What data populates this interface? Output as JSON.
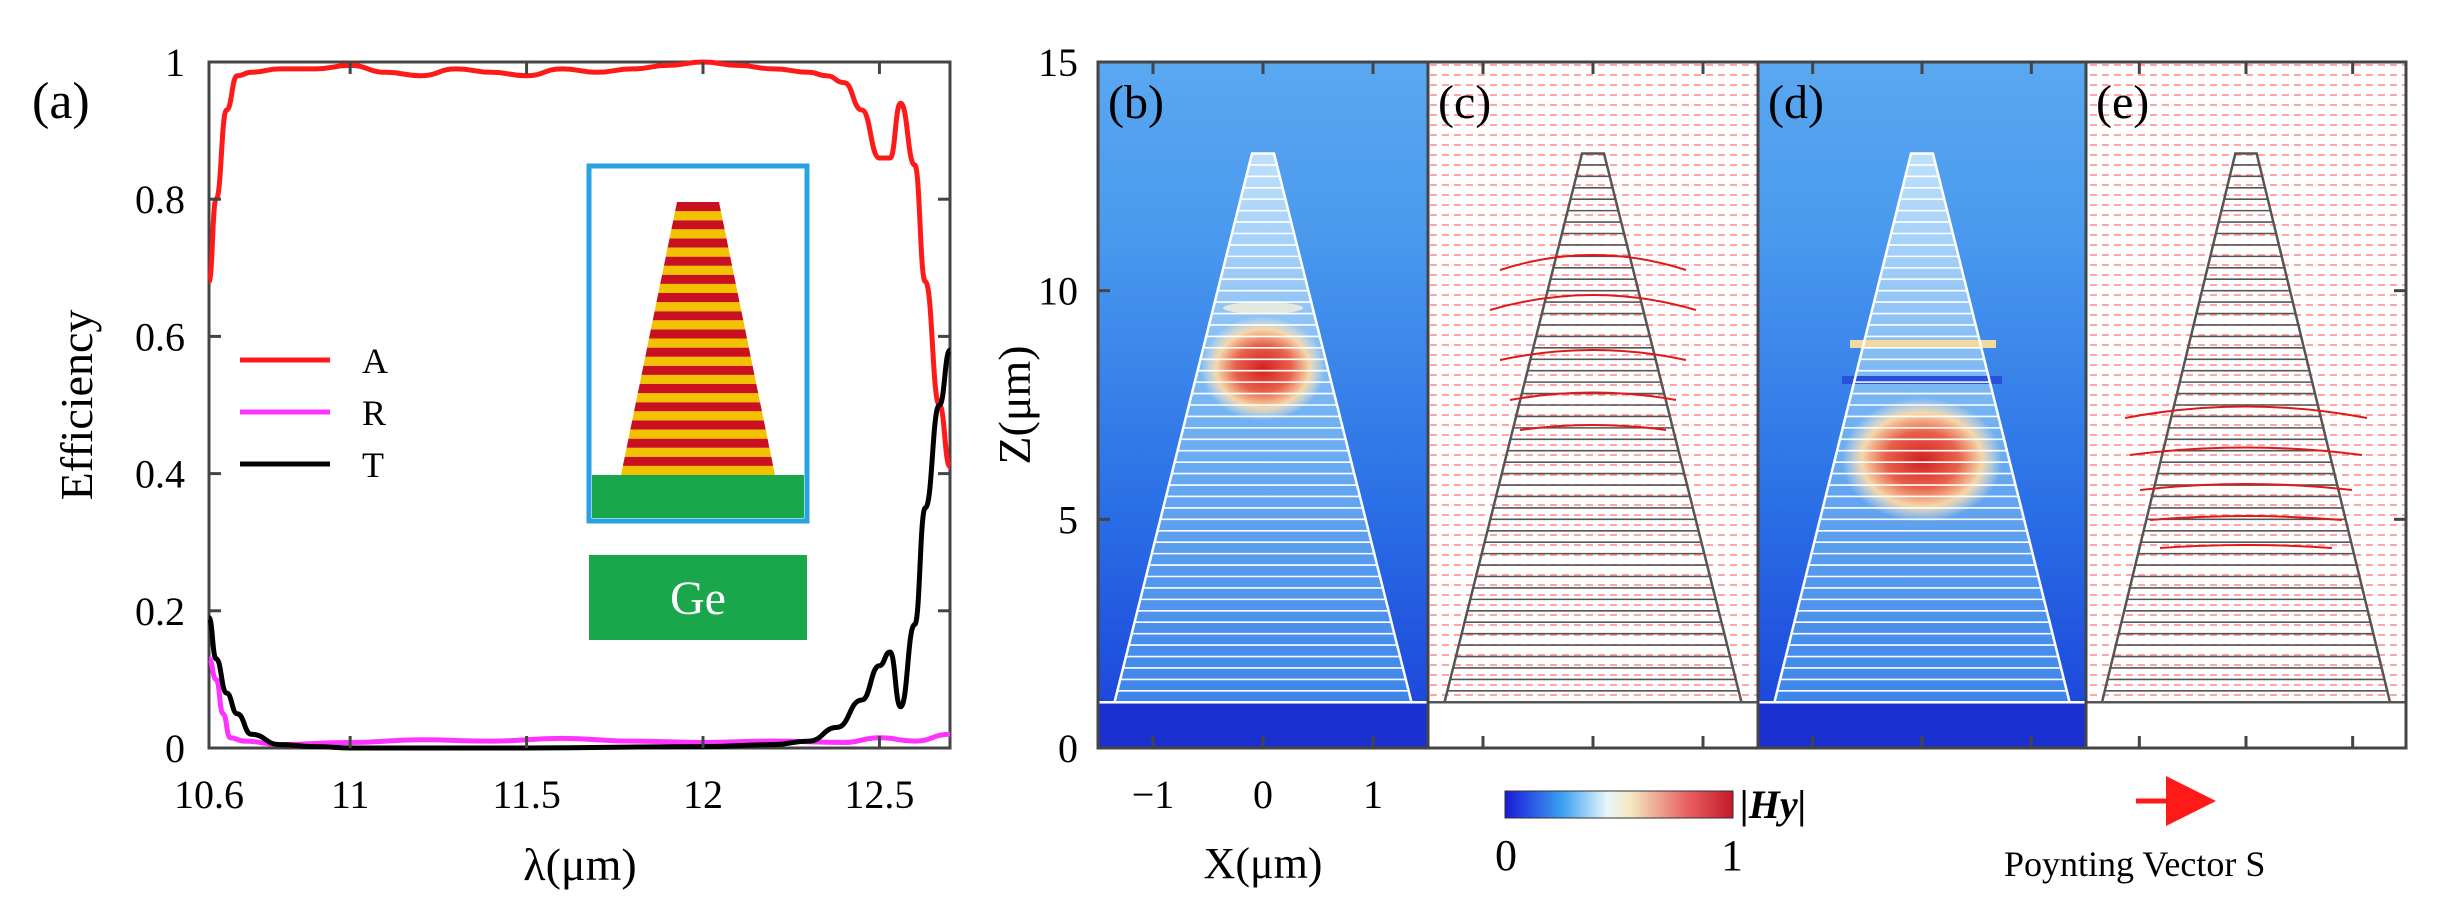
{
  "chart_data": [
    {
      "panel": "(a)",
      "type": "line",
      "xlabel": "λ(μm)",
      "ylabel": "Efficiency",
      "xlim": [
        10.6,
        12.7
      ],
      "ylim": [
        0,
        1
      ],
      "xticks": [
        "10.6",
        "11",
        "11.5",
        "12",
        "12.5"
      ],
      "xtick_values": [
        10.6,
        11,
        11.5,
        12,
        12.5
      ],
      "yticks": [
        "0",
        "0.2",
        "0.4",
        "0.6",
        "0.8",
        "1"
      ],
      "ytick_values": [
        0,
        0.2,
        0.4,
        0.6,
        0.8,
        1
      ],
      "legend": [
        "A",
        "R",
        "T"
      ],
      "colors": {
        "A": "#ff1a1a",
        "R": "#ff33ff",
        "T": "#000000"
      },
      "series": [
        {
          "name": "A",
          "x": [
            10.6,
            10.62,
            10.65,
            10.68,
            10.72,
            10.8,
            10.9,
            11.0,
            11.1,
            11.2,
            11.3,
            11.4,
            11.5,
            11.6,
            11.7,
            11.8,
            11.9,
            12.0,
            12.1,
            12.2,
            12.3,
            12.35,
            12.4,
            12.45,
            12.5,
            12.53,
            12.56,
            12.6,
            12.63,
            12.67,
            12.7
          ],
          "y": [
            0.68,
            0.8,
            0.93,
            0.98,
            0.985,
            0.99,
            0.99,
            0.995,
            0.985,
            0.98,
            0.99,
            0.985,
            0.98,
            0.99,
            0.985,
            0.99,
            0.995,
            1.0,
            0.995,
            0.99,
            0.985,
            0.98,
            0.97,
            0.93,
            0.86,
            0.86,
            0.94,
            0.85,
            0.68,
            0.5,
            0.41
          ]
        },
        {
          "name": "R",
          "x": [
            10.6,
            10.62,
            10.64,
            10.66,
            10.7,
            10.8,
            11.0,
            11.2,
            11.4,
            11.6,
            11.8,
            12.0,
            12.2,
            12.4,
            12.5,
            12.6,
            12.7
          ],
          "y": [
            0.13,
            0.1,
            0.05,
            0.015,
            0.01,
            0.005,
            0.008,
            0.012,
            0.01,
            0.014,
            0.01,
            0.008,
            0.01,
            0.008,
            0.015,
            0.01,
            0.02
          ]
        },
        {
          "name": "T",
          "x": [
            10.6,
            10.62,
            10.65,
            10.68,
            10.72,
            10.8,
            10.9,
            11.0,
            11.5,
            12.0,
            12.2,
            12.3,
            12.38,
            12.45,
            12.5,
            12.53,
            12.56,
            12.6,
            12.63,
            12.67,
            12.7
          ],
          "y": [
            0.19,
            0.13,
            0.08,
            0.05,
            0.02,
            0.005,
            0.002,
            0.0,
            0.0,
            0.002,
            0.005,
            0.01,
            0.03,
            0.07,
            0.12,
            0.14,
            0.06,
            0.18,
            0.35,
            0.5,
            0.58
          ]
        }
      ],
      "inset": {
        "substrate_label": "Ge"
      }
    },
    {
      "panel": "(b)–(e)",
      "type": "heatmap",
      "ylabel": "Z(μm)",
      "xlabel": "X(μm)",
      "ylim": [
        0,
        15
      ],
      "xlim": [
        -1.5,
        1.5
      ],
      "yticks": [
        "0",
        "5",
        "10",
        "15"
      ],
      "ytick_values": [
        0,
        5,
        10,
        15
      ],
      "xticks": [
        "−1",
        "0",
        "1"
      ],
      "xtick_values": [
        -1,
        0,
        1
      ],
      "subpanels": [
        "(b)",
        "(c)",
        "(d)",
        "(e)"
      ],
      "colorbar": {
        "label": "|Hy|",
        "min_label": "0",
        "max_label": "1",
        "range": [
          0,
          1
        ]
      },
      "vector_legend": "Poynting  Vector S",
      "hotspots": [
        {
          "panel": "(b)",
          "z_center": 8.3,
          "x_center": 0.0
        },
        {
          "panel": "(d)",
          "z_center": 6.3,
          "x_center": 0.0
        }
      ],
      "pyramid": {
        "base_z": 1.0,
        "apex_z": 13.0,
        "base_half_width": 1.35,
        "apex_half_width": 0.1,
        "layers": 48
      }
    }
  ]
}
